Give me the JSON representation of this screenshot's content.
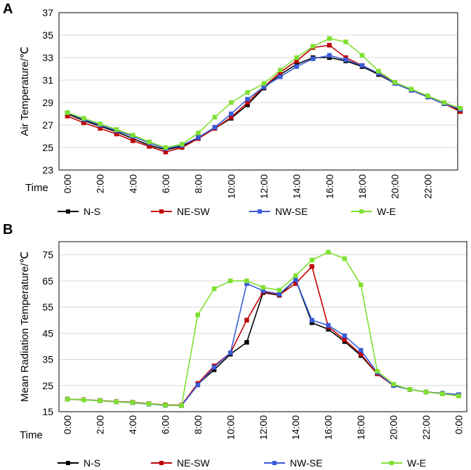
{
  "chart_data": [
    {
      "panel": "A",
      "type": "line",
      "ylabel": "Air Temperature/℃",
      "xlabel": "Time",
      "ylim": [
        23,
        37
      ],
      "yticks": [
        23,
        25,
        27,
        29,
        31,
        33,
        35,
        37
      ],
      "x_labels": [
        "0:00",
        "2:00",
        "4:00",
        "6:00",
        "8:00",
        "10:00",
        "12:00",
        "14:00",
        "16:00",
        "18:00",
        "20:00",
        "22:00"
      ],
      "series": [
        {
          "name": "N-S",
          "color": "#000000",
          "values": [
            28.0,
            27.4,
            26.9,
            26.4,
            25.8,
            25.2,
            24.8,
            25.1,
            25.9,
            26.7,
            27.6,
            28.8,
            30.3,
            31.5,
            32.4,
            33.0,
            33.0,
            32.7,
            32.2,
            31.5,
            30.7,
            30.1,
            29.5,
            28.9,
            28.3
          ]
        },
        {
          "name": "NE-SW",
          "color": "#c00000",
          "values": [
            27.8,
            27.2,
            26.7,
            26.2,
            25.6,
            25.1,
            24.6,
            25.0,
            25.8,
            26.7,
            27.7,
            29.0,
            30.4,
            31.7,
            32.7,
            33.9,
            34.1,
            33.0,
            32.3,
            31.6,
            30.8,
            30.1,
            29.5,
            28.9,
            28.2
          ]
        },
        {
          "name": "NW-SE",
          "color": "#3a5bd9",
          "values": [
            28.1,
            27.5,
            27.0,
            26.5,
            26.0,
            25.4,
            24.9,
            25.2,
            25.9,
            26.8,
            28.0,
            29.3,
            30.4,
            31.3,
            32.2,
            32.9,
            33.2,
            32.8,
            32.3,
            31.6,
            30.7,
            30.1,
            29.5,
            28.9,
            28.4
          ]
        },
        {
          "name": "W-E",
          "color": "#7fe030",
          "values": [
            28.1,
            27.6,
            27.1,
            26.6,
            26.1,
            25.5,
            25.0,
            25.3,
            26.3,
            27.7,
            29.0,
            29.9,
            30.7,
            31.9,
            33.0,
            34.0,
            34.7,
            34.4,
            33.2,
            31.8,
            30.8,
            30.2,
            29.6,
            29.0,
            28.5
          ]
        }
      ]
    },
    {
      "panel": "B",
      "type": "line",
      "ylabel": "Mean Radiation Temperature/℃",
      "xlabel": "Time",
      "ylim": [
        15,
        80
      ],
      "yticks": [
        15,
        25,
        35,
        45,
        55,
        65,
        75
      ],
      "x_labels": [
        "0:00",
        "2:00",
        "4:00",
        "6:00",
        "8:00",
        "10:00",
        "12:00",
        "14:00",
        "16:00",
        "18:00",
        "20:00",
        "22:00",
        "0:00"
      ],
      "series": [
        {
          "name": "N-S",
          "color": "#000000",
          "values": [
            19.8,
            19.5,
            19.2,
            18.8,
            18.5,
            18.0,
            17.5,
            17.4,
            25.5,
            31.0,
            37.0,
            41.5,
            60.5,
            59.5,
            65.5,
            49.0,
            46.5,
            41.8,
            36.5,
            29.5,
            25.0,
            23.5,
            22.5,
            22.0,
            21.5
          ]
        },
        {
          "name": "NE-SW",
          "color": "#c00000",
          "values": [
            19.8,
            19.6,
            19.3,
            18.9,
            18.6,
            18.1,
            17.6,
            17.5,
            25.8,
            32.5,
            37.5,
            50.0,
            60.8,
            59.7,
            64.0,
            70.5,
            47.5,
            42.5,
            37.0,
            29.5,
            25.0,
            23.5,
            22.5,
            22.0,
            21.5
          ]
        },
        {
          "name": "NW-SE",
          "color": "#3a5bd9",
          "values": [
            19.8,
            19.5,
            19.2,
            18.8,
            18.4,
            17.9,
            17.4,
            17.3,
            25.2,
            32.0,
            37.5,
            64.0,
            61.2,
            60.0,
            65.5,
            50.0,
            48.0,
            44.0,
            38.5,
            30.0,
            25.0,
            23.5,
            22.5,
            22.0,
            21.5
          ]
        },
        {
          "name": "W-E",
          "color": "#7fe030",
          "values": [
            19.8,
            19.5,
            19.2,
            18.8,
            18.5,
            18.0,
            17.5,
            17.3,
            52.0,
            62.0,
            65.0,
            65.0,
            62.5,
            61.5,
            67.0,
            73.0,
            76.0,
            73.5,
            63.5,
            30.5,
            25.5,
            23.5,
            22.5,
            21.8,
            21.0
          ]
        }
      ]
    }
  ]
}
